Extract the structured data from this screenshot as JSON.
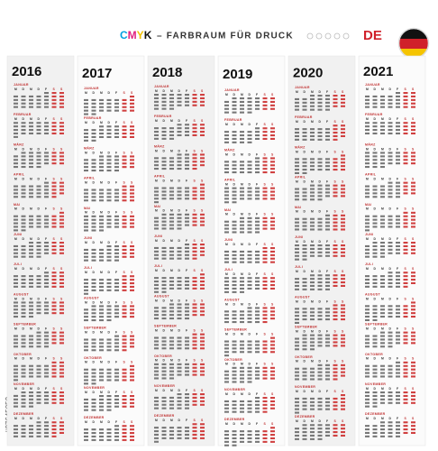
{
  "header": {
    "cmyk": "CMYK",
    "title": "– FARBRAUM FÜR DRUCK",
    "country": "DE"
  },
  "years": [
    "2016",
    "2017",
    "2018",
    "2019",
    "2020",
    "2021"
  ],
  "months": [
    "JANUAR",
    "FEBRUAR",
    "MÄRZ",
    "APRIL",
    "MAI",
    "JUNI",
    "JULI",
    "AUGUST",
    "SEPTEMBER",
    "OKTOBER",
    "NOVEMBER",
    "DEZEMBER"
  ],
  "weekdays": [
    "M",
    "D",
    "M",
    "D",
    "F",
    "S",
    "S"
  ],
  "watermark": "#87645852"
}
